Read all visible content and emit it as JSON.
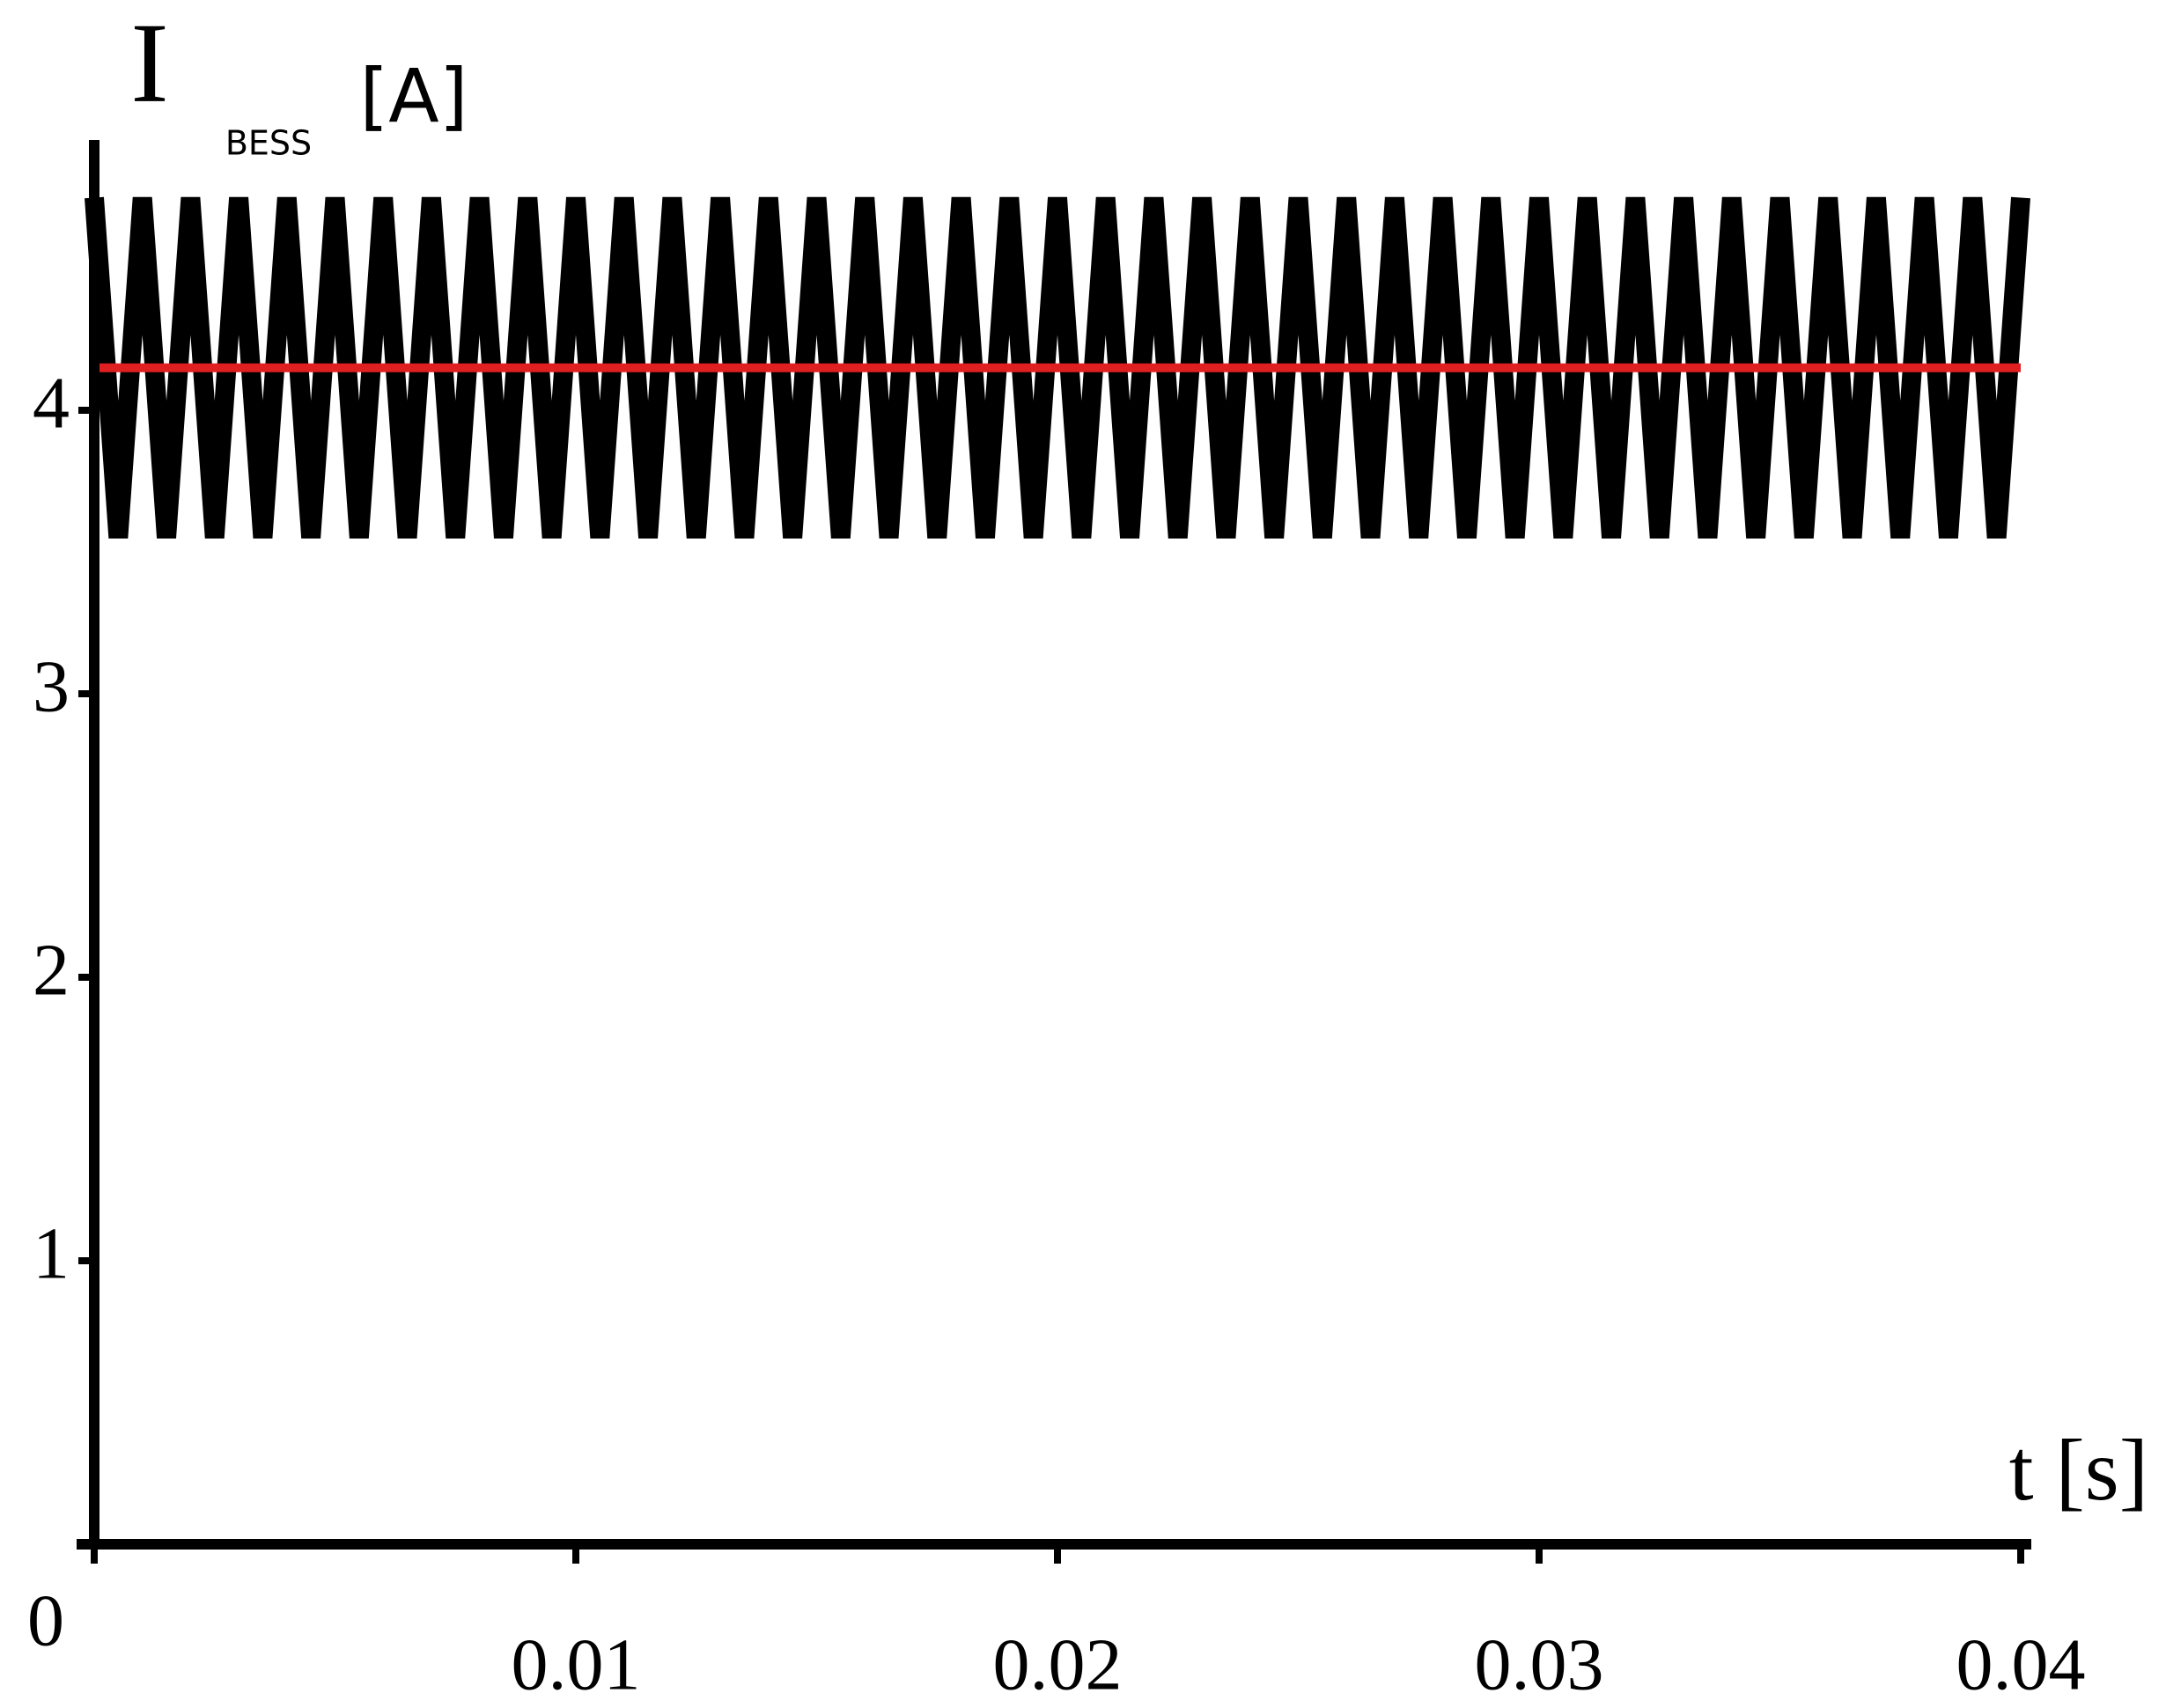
{
  "chart_data": {
    "type": "line",
    "ylabel": "I",
    "ylabel_sub": "BESS",
    "ylabel_unit": "[A]",
    "xlabel": "t [s]",
    "xlim": [
      0,
      0.04
    ],
    "ylim": [
      0,
      5
    ],
    "xticks": [
      0,
      0.01,
      0.02,
      0.03,
      0.04
    ],
    "yticks": [
      1,
      2,
      3,
      4
    ],
    "series": [
      {
        "color": "#000000",
        "x": [
          0,
          0.0005,
          0.001,
          0.0015,
          0.002,
          0.0025,
          0.003,
          0.0035,
          0.004,
          0.0045,
          0.005,
          0.0055,
          0.006,
          0.0065,
          0.007,
          0.0075,
          0.008,
          0.0085,
          0.009,
          0.0095,
          0.01,
          0.0105,
          0.011,
          0.0115,
          0.012,
          0.0125,
          0.013,
          0.0135,
          0.014,
          0.0145,
          0.015,
          0.0155,
          0.016,
          0.0165,
          0.017,
          0.0175,
          0.018,
          0.0185,
          0.019,
          0.0195,
          0.02,
          0.0205,
          0.021,
          0.0215,
          0.022,
          0.0225,
          0.023,
          0.0235,
          0.024,
          0.0245,
          0.025,
          0.0255,
          0.026,
          0.0265,
          0.027,
          0.0275,
          0.028,
          0.0285,
          0.029,
          0.0295,
          0.03,
          0.0305,
          0.031,
          0.0315,
          0.032,
          0.0325,
          0.033,
          0.0335,
          0.034,
          0.0345,
          0.035,
          0.0355,
          0.036,
          0.0365,
          0.037,
          0.0375,
          0.038,
          0.0385,
          0.039,
          0.0395,
          0.04
        ],
        "values": [
          4.75,
          3.55,
          4.75,
          3.55,
          4.75,
          3.55,
          4.75,
          3.55,
          4.75,
          3.55,
          4.75,
          3.55,
          4.75,
          3.55,
          4.75,
          3.55,
          4.75,
          3.55,
          4.75,
          3.55,
          4.75,
          3.55,
          4.75,
          3.55,
          4.75,
          3.55,
          4.75,
          3.55,
          4.75,
          3.55,
          4.75,
          3.55,
          4.75,
          3.55,
          4.75,
          3.55,
          4.75,
          3.55,
          4.75,
          3.55,
          4.75,
          3.55,
          4.75,
          3.55,
          4.75,
          3.55,
          4.75,
          3.55,
          4.75,
          3.55,
          4.75,
          3.55,
          4.75,
          3.55,
          4.75,
          3.55,
          4.75,
          3.55,
          4.75,
          3.55,
          4.75,
          3.55,
          4.75,
          3.55,
          4.75,
          3.55,
          4.75,
          3.55,
          4.75,
          3.55,
          4.75,
          3.55,
          4.75,
          3.55,
          4.75,
          3.55,
          4.75,
          3.55,
          4.75,
          3.55,
          4.75
        ]
      },
      {
        "color": "#e02020",
        "x": [
          0,
          0.04
        ],
        "values": [
          4.15,
          4.15
        ]
      }
    ]
  }
}
